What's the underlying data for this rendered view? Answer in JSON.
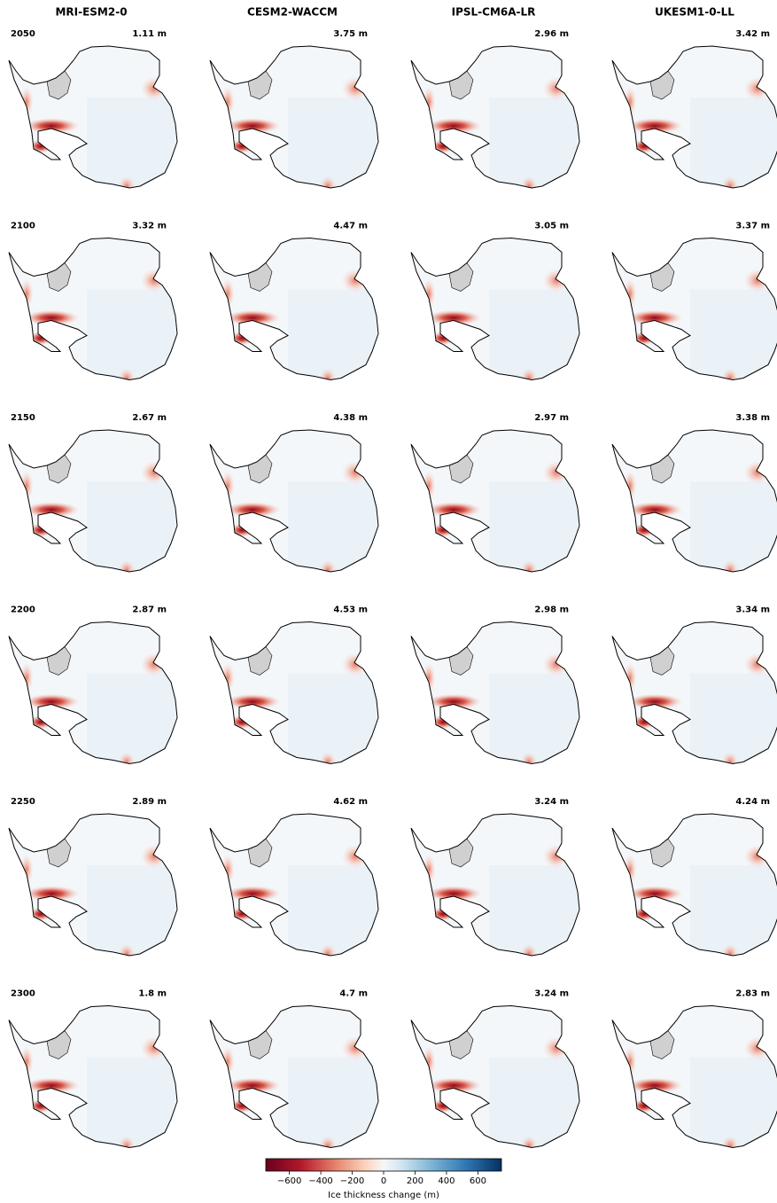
{
  "columns": [
    "MRI-ESM2-0",
    "CESM2-WACCM",
    "IPSL-CM6A-LR",
    "UKESM1-0-LL"
  ],
  "rows": [
    {
      "year": "2050",
      "values": [
        "1.11 m",
        "3.75 m",
        "2.96 m",
        "3.42 m"
      ]
    },
    {
      "year": "2100",
      "values": [
        "3.32 m",
        "4.47 m",
        "3.05 m",
        "3.37 m"
      ]
    },
    {
      "year": "2150",
      "values": [
        "2.67 m",
        "4.38 m",
        "2.97 m",
        "3.38 m"
      ]
    },
    {
      "year": "2200",
      "values": [
        "2.87 m",
        "4.53 m",
        "2.98 m",
        "3.34 m"
      ]
    },
    {
      "year": "2250",
      "values": [
        "2.89 m",
        "4.62 m",
        "3.24 m",
        "4.24 m"
      ]
    },
    {
      "year": "2300",
      "values": [
        "1.8 m",
        "4.7 m",
        "3.24 m",
        "2.83 m"
      ]
    }
  ],
  "colorbar": {
    "label": "Ice thickness change (m)",
    "lim": [
      -750,
      750
    ],
    "ticks": [
      {
        "value": -600,
        "label": "−600"
      },
      {
        "value": -400,
        "label": "−400"
      },
      {
        "value": -200,
        "label": "−200"
      },
      0,
      200,
      400,
      600
    ]
  }
}
